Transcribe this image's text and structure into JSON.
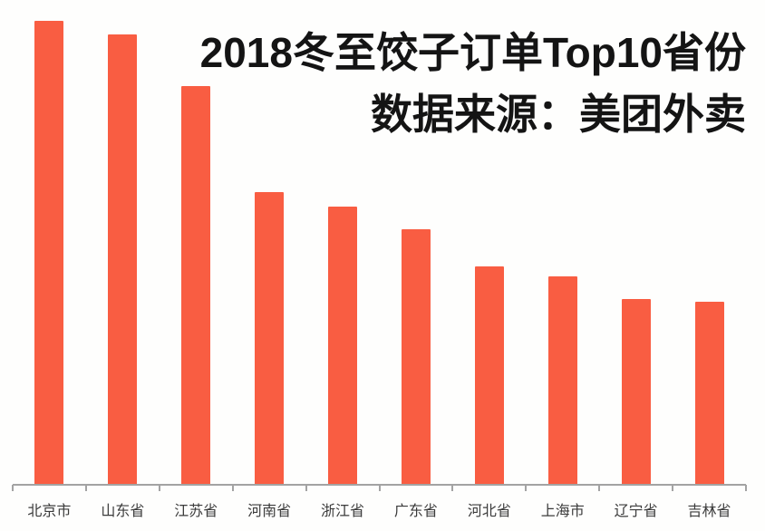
{
  "page": {
    "background_color": "#fefefd"
  },
  "chart_data": {
    "type": "bar",
    "title": "2018冬至饺子订单Top10省份",
    "subtitle": "数据来源：美团外卖",
    "categories": [
      "北京市",
      "山东省",
      "江苏省",
      "河南省",
      "浙江省",
      "广东省",
      "河北省",
      "上海市",
      "辽宁省",
      "吉林省"
    ],
    "values": [
      100,
      97,
      86,
      63,
      60,
      55,
      47,
      45,
      40,
      39.5
    ],
    "values_are_relative_estimates": true,
    "xlabel": "",
    "ylabel": "",
    "ylim": [
      0,
      105
    ],
    "grid": false,
    "legend_position": "none",
    "y_axis_shown": false,
    "bar_color": "#f95d42",
    "axis_color": "#a3a3a3",
    "label_color": "#3b3b3b",
    "title_color": "#141414"
  }
}
